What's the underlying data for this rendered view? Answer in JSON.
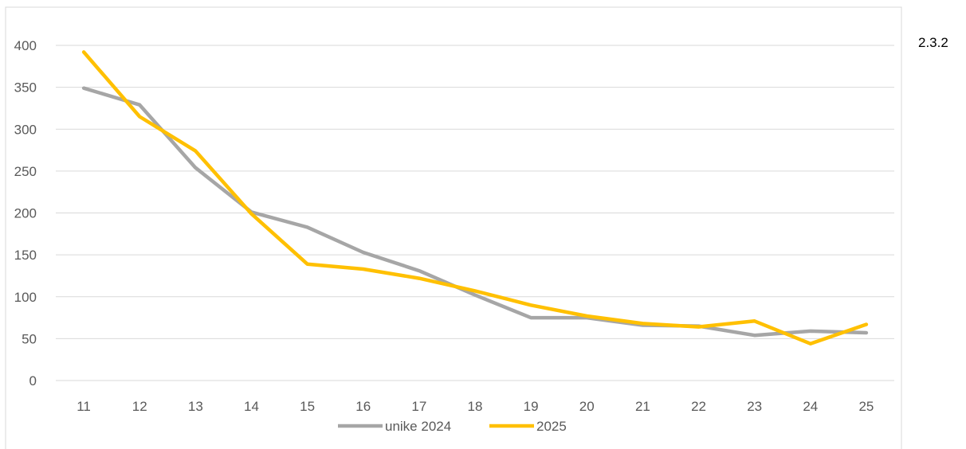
{
  "section_label": "2.3.2",
  "chart_data": {
    "type": "line",
    "x": [
      11,
      12,
      13,
      14,
      15,
      16,
      17,
      18,
      19,
      20,
      21,
      22,
      23,
      24,
      25
    ],
    "series": [
      {
        "name": "unike 2024",
        "color": "#a6a6a6",
        "values": [
          349,
          329,
          254,
          201,
          183,
          153,
          131,
          102,
          75,
          75,
          66,
          65,
          54,
          59,
          57
        ]
      },
      {
        "name": "2025",
        "color": "#ffc000",
        "values": [
          392,
          315,
          274,
          199,
          139,
          133,
          122,
          107,
          90,
          77,
          68,
          64,
          71,
          44,
          67
        ]
      }
    ],
    "yticks": [
      0,
      50,
      100,
      150,
      200,
      250,
      300,
      350,
      400
    ],
    "ylim": [
      0,
      400
    ],
    "grid": true,
    "legend": "bottom"
  }
}
